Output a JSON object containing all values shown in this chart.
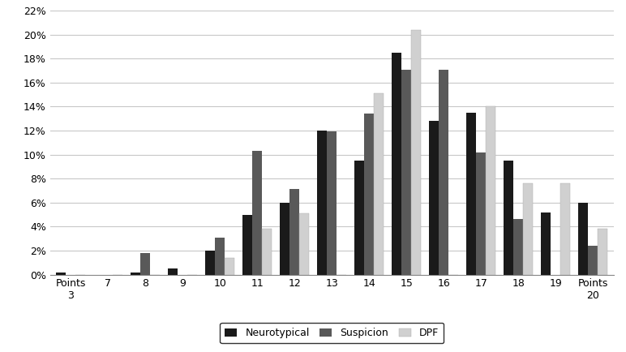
{
  "categories": [
    "Points\n3",
    "7",
    "8",
    "9",
    "10",
    "11",
    "12",
    "13",
    "14",
    "15",
    "16",
    "17",
    "18",
    "19",
    "Points\n20"
  ],
  "neurotypical": [
    0.002,
    0.0,
    0.002,
    0.005,
    0.02,
    0.05,
    0.06,
    0.12,
    0.095,
    0.185,
    0.128,
    0.135,
    0.095,
    0.052,
    0.06
  ],
  "suspicion": [
    0.0,
    0.0,
    0.018,
    0.0,
    0.031,
    0.103,
    0.071,
    0.119,
    0.134,
    0.171,
    0.171,
    0.102,
    0.046,
    0.0,
    0.024
  ],
  "dpf": [
    0.0,
    0.0,
    0.0,
    0.0,
    0.014,
    0.038,
    0.051,
    0.0,
    0.151,
    0.204,
    0.0,
    0.14,
    0.076,
    0.076,
    0.038
  ],
  "series_labels": [
    "Neurotypical",
    "Suspicion",
    "DPF"
  ],
  "colors": [
    "#1a1a1a",
    "#595959",
    "#d0d0d0"
  ],
  "ylim": [
    0,
    0.22
  ],
  "yticks": [
    0.0,
    0.02,
    0.04,
    0.06,
    0.08,
    0.1,
    0.12,
    0.14,
    0.16,
    0.18,
    0.2,
    0.22
  ],
  "background_color": "#ffffff",
  "grid_color": "#c8c8c8"
}
